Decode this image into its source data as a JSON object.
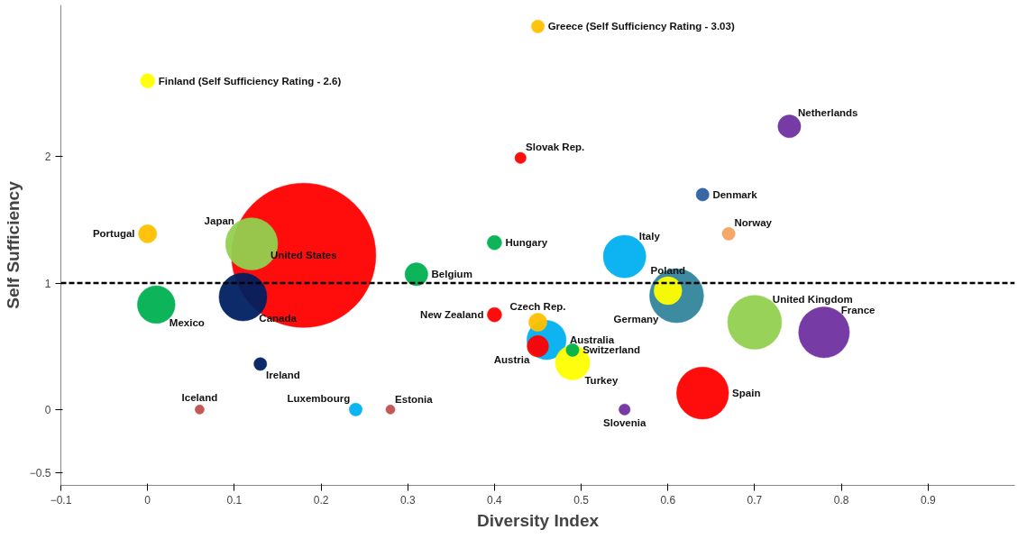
{
  "chart_data": {
    "type": "bubble",
    "xlabel": "Diversity Index",
    "ylabel": "Self Sufficiency",
    "xlim": [
      -0.1,
      1.0
    ],
    "xticks": [
      -0.1,
      0,
      0.1,
      0.2,
      0.3,
      0.4,
      0.5,
      0.6,
      0.7,
      0.8,
      0.9
    ],
    "ylim": [
      -0.6,
      3.2
    ],
    "yticks": [
      -0.5,
      0,
      1,
      2
    ],
    "x": [
      0.18,
      0,
      0.45,
      0.74,
      0.43,
      0.64,
      0.67,
      0,
      0.12,
      0.4,
      0.55,
      0.31,
      0.61,
      0.6,
      0.11,
      0.01,
      0.7,
      0.78,
      0.4,
      0.46,
      0.45,
      0.45,
      0.49,
      0.49,
      0.13,
      0.64,
      0.06,
      0.24,
      0.28,
      0.55
    ],
    "values": [
      1.22,
      2.6,
      3.03,
      2.24,
      1.99,
      1.7,
      1.39,
      1.39,
      1.31,
      1.32,
      1.21,
      1.07,
      0.9,
      0.94,
      0.89,
      0.83,
      0.69,
      0.61,
      0.75,
      0.55,
      0.69,
      0.5,
      0.37,
      0.47,
      0.36,
      0.13,
      0,
      0,
      0,
      0
    ],
    "sizes": [
      1,
      0.01,
      0.008,
      0.025,
      0.006,
      0.008,
      0.008,
      0.016,
      0.13,
      0.01,
      0.087,
      0.025,
      0.14,
      0.037,
      0.11,
      0.068,
      0.14,
      0.124,
      0.01,
      0.074,
      0.016,
      0.022,
      0.057,
      0.008,
      0.008,
      0.13,
      0.004,
      0.008,
      0.004,
      0.006
    ],
    "colors": [
      "#ff0000",
      "#ffff00",
      "#ffc000",
      "#7030a0",
      "#ff0000",
      "#2e5fa0",
      "#f4a460",
      "#ffc000",
      "#92d050",
      "#00b050",
      "#00b0f0",
      "#00b050",
      "#31859c",
      "#ffff00",
      "#002060",
      "#00b050",
      "#92d050",
      "#7030a0",
      "#ff0000",
      "#00b0f0",
      "#ffc000",
      "#ff0000",
      "#ffff00",
      "#00b050",
      "#002060",
      "#ff0000",
      "#c0504d",
      "#00b0f0",
      "#c0504d",
      "#7030a0"
    ],
    "annotations": [
      {
        "text": "United States",
        "x": 0.18,
        "y": 1.22
      },
      {
        "text": "Finland (Self Sufficiency Rating - 2.6)",
        "x": 0,
        "y": 2.6
      },
      {
        "text": "Greece (Self Sufficiency Rating - 3.03)",
        "x": 0.45,
        "y": 3.03
      },
      {
        "text": "Netherlands",
        "x": 0.74,
        "y": 2.24
      },
      {
        "text": "Slovak Rep.",
        "x": 0.43,
        "y": 1.99
      },
      {
        "text": "Denmark",
        "x": 0.64,
        "y": 1.7
      },
      {
        "text": "Norway",
        "x": 0.67,
        "y": 1.39
      },
      {
        "text": "Portugal",
        "x": 0,
        "y": 1.39
      },
      {
        "text": "Japan",
        "x": 0.12,
        "y": 1.31
      },
      {
        "text": "Hungary",
        "x": 0.4,
        "y": 1.32
      },
      {
        "text": "Italy",
        "x": 0.55,
        "y": 1.21
      },
      {
        "text": "Belgium",
        "x": 0.31,
        "y": 1.07
      },
      {
        "text": "Germany",
        "x": 0.61,
        "y": 0.9
      },
      {
        "text": "Poland",
        "x": 0.6,
        "y": 0.94
      },
      {
        "text": "Canada",
        "x": 0.11,
        "y": 0.89
      },
      {
        "text": "Mexico",
        "x": 0.01,
        "y": 0.83
      },
      {
        "text": "United Kingdom",
        "x": 0.7,
        "y": 0.69
      },
      {
        "text": "France",
        "x": 0.78,
        "y": 0.61
      },
      {
        "text": "New Zealand",
        "x": 0.4,
        "y": 0.75
      },
      {
        "text": "Australia",
        "x": 0.46,
        "y": 0.55
      },
      {
        "text": "Czech Rep.",
        "x": 0.45,
        "y": 0.69
      },
      {
        "text": "Austria",
        "x": 0.45,
        "y": 0.5
      },
      {
        "text": "Turkey",
        "x": 0.49,
        "y": 0.37
      },
      {
        "text": "Switzerland",
        "x": 0.49,
        "y": 0.47
      },
      {
        "text": "Ireland",
        "x": 0.13,
        "y": 0.36
      },
      {
        "text": "Spain",
        "x": 0.64,
        "y": 0.13
      },
      {
        "text": "Iceland",
        "x": 0.06,
        "y": 0
      },
      {
        "text": "Luxembourg",
        "x": 0.24,
        "y": 0
      },
      {
        "text": "Estonia",
        "x": 0.28,
        "y": 0
      },
      {
        "text": "Slovenia",
        "x": 0.55,
        "y": 0
      }
    ],
    "ref_lines": [
      {
        "axis": "y",
        "value": 1,
        "color": "#000000",
        "line_style": "dashed"
      }
    ]
  }
}
